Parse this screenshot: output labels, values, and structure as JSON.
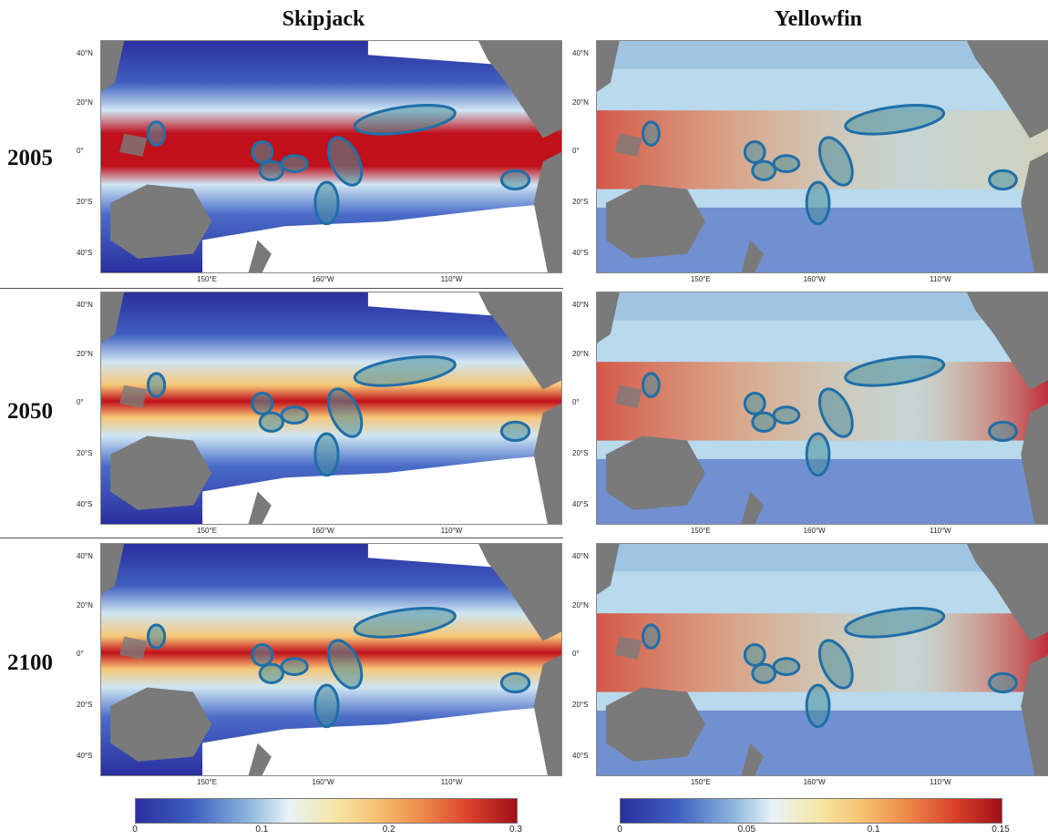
{
  "columns": [
    {
      "title": "Skipjack",
      "colorbar_ticks": [
        "0",
        "0.1",
        "0.2",
        "0.3"
      ]
    },
    {
      "title": "Yellowfin",
      "colorbar_ticks": [
        "0",
        "0.05",
        "0.1",
        "0.15"
      ]
    }
  ],
  "rows": [
    {
      "year": "2005"
    },
    {
      "year": "2050"
    },
    {
      "year": "2100"
    }
  ],
  "lat_labels": [
    "40°N",
    "20°N",
    "0°",
    "20°S",
    "40°S"
  ],
  "lon_labels": [
    "150°E",
    "160°W",
    "110°W"
  ],
  "colors": {
    "land": "#7a7a7a",
    "ocean_low": "#2a2f9e",
    "ocean_mid": "#cfe6f3",
    "ocean_warm": "#f6c777",
    "ocean_high": "#c0101a",
    "ellipse_stroke": "#1f6fa8",
    "ellipse_fill": "#4a8f9c"
  }
}
